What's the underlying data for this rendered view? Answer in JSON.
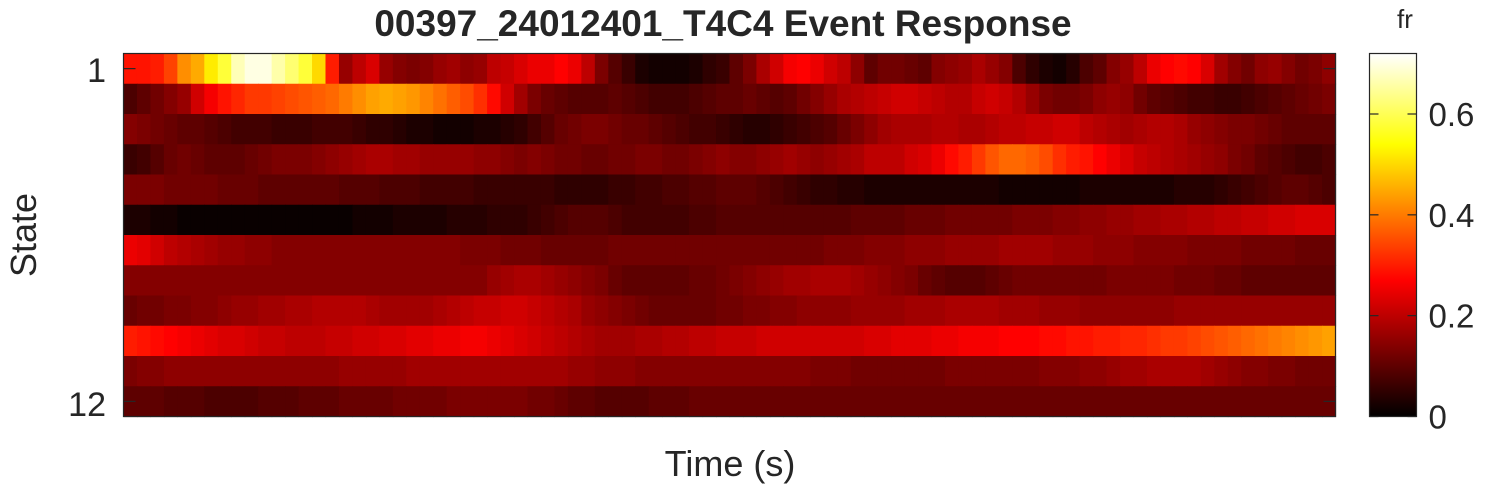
{
  "chart_data": {
    "type": "heatmap",
    "title": "00397_24012401_T4C4 Event Response",
    "xlabel": "Time (s)",
    "ylabel": "State",
    "y_tick_labels": [
      "1",
      "12"
    ],
    "rows": 12,
    "colorbar": {
      "label": "fr",
      "colormap": "hot",
      "range": [
        0,
        0.72
      ],
      "ticks": [
        0,
        0.2,
        0.4,
        0.6
      ],
      "tick_labels": [
        "0",
        "0.2",
        "0.4",
        "0.6"
      ]
    },
    "values": [
      [
        0.29,
        0.29,
        0.3,
        0.34,
        0.42,
        0.45,
        0.52,
        0.58,
        0.67,
        0.7,
        0.7,
        0.66,
        0.62,
        0.58,
        0.5,
        0.3,
        0.16,
        0.2,
        0.23,
        0.16,
        0.14,
        0.13,
        0.14,
        0.16,
        0.17,
        0.15,
        0.16,
        0.2,
        0.21,
        0.23,
        0.25,
        0.25,
        0.27,
        0.25,
        0.2,
        0.13,
        0.09,
        0.06,
        0.03,
        0.02,
        0.02,
        0.02,
        0.03,
        0.05,
        0.06,
        0.1,
        0.13,
        0.18,
        0.22,
        0.26,
        0.27,
        0.25,
        0.22,
        0.2,
        0.15,
        0.1,
        0.12,
        0.12,
        0.11,
        0.1,
        0.14,
        0.15,
        0.16,
        0.18,
        0.16,
        0.14,
        0.08,
        0.05,
        0.03,
        0.02,
        0.04,
        0.08,
        0.1,
        0.14,
        0.16,
        0.2,
        0.25,
        0.27,
        0.28,
        0.27,
        0.23,
        0.17,
        0.14,
        0.12,
        0.15,
        0.16,
        0.14,
        0.12,
        0.13,
        0.15
      ],
      [
        0.08,
        0.1,
        0.12,
        0.14,
        0.16,
        0.22,
        0.26,
        0.29,
        0.31,
        0.33,
        0.33,
        0.34,
        0.35,
        0.36,
        0.37,
        0.38,
        0.4,
        0.42,
        0.44,
        0.45,
        0.44,
        0.43,
        0.41,
        0.39,
        0.37,
        0.35,
        0.32,
        0.28,
        0.22,
        0.17,
        0.13,
        0.11,
        0.1,
        0.09,
        0.09,
        0.09,
        0.1,
        0.09,
        0.08,
        0.07,
        0.07,
        0.07,
        0.08,
        0.09,
        0.1,
        0.1,
        0.11,
        0.1,
        0.09,
        0.1,
        0.12,
        0.14,
        0.16,
        0.18,
        0.19,
        0.2,
        0.21,
        0.22,
        0.22,
        0.21,
        0.2,
        0.19,
        0.19,
        0.21,
        0.22,
        0.21,
        0.19,
        0.16,
        0.13,
        0.12,
        0.12,
        0.13,
        0.15,
        0.16,
        0.15,
        0.12,
        0.1,
        0.09,
        0.08,
        0.07,
        0.07,
        0.06,
        0.06,
        0.07,
        0.08,
        0.09,
        0.1,
        0.11,
        0.12,
        0.13
      ],
      [
        0.14,
        0.13,
        0.12,
        0.11,
        0.1,
        0.1,
        0.09,
        0.08,
        0.07,
        0.07,
        0.07,
        0.06,
        0.06,
        0.06,
        0.07,
        0.07,
        0.07,
        0.06,
        0.05,
        0.05,
        0.04,
        0.03,
        0.03,
        0.02,
        0.02,
        0.02,
        0.03,
        0.03,
        0.04,
        0.05,
        0.07,
        0.09,
        0.11,
        0.12,
        0.13,
        0.13,
        0.12,
        0.11,
        0.11,
        0.1,
        0.09,
        0.08,
        0.07,
        0.07,
        0.06,
        0.05,
        0.04,
        0.04,
        0.05,
        0.06,
        0.07,
        0.08,
        0.09,
        0.11,
        0.13,
        0.15,
        0.17,
        0.18,
        0.18,
        0.18,
        0.19,
        0.19,
        0.18,
        0.18,
        0.19,
        0.2,
        0.2,
        0.21,
        0.21,
        0.22,
        0.22,
        0.2,
        0.19,
        0.18,
        0.17,
        0.18,
        0.19,
        0.19,
        0.18,
        0.16,
        0.15,
        0.14,
        0.13,
        0.13,
        0.12,
        0.11,
        0.1,
        0.1,
        0.1,
        0.1
      ],
      [
        0.06,
        0.07,
        0.09,
        0.11,
        0.12,
        0.11,
        0.1,
        0.1,
        0.1,
        0.11,
        0.12,
        0.13,
        0.13,
        0.13,
        0.14,
        0.15,
        0.16,
        0.17,
        0.18,
        0.18,
        0.17,
        0.17,
        0.16,
        0.16,
        0.16,
        0.16,
        0.15,
        0.15,
        0.14,
        0.13,
        0.14,
        0.13,
        0.12,
        0.12,
        0.11,
        0.11,
        0.12,
        0.12,
        0.13,
        0.13,
        0.12,
        0.12,
        0.13,
        0.14,
        0.15,
        0.14,
        0.14,
        0.15,
        0.16,
        0.17,
        0.16,
        0.15,
        0.16,
        0.17,
        0.18,
        0.2,
        0.2,
        0.2,
        0.22,
        0.23,
        0.25,
        0.28,
        0.3,
        0.33,
        0.36,
        0.38,
        0.38,
        0.37,
        0.35,
        0.32,
        0.3,
        0.29,
        0.27,
        0.25,
        0.23,
        0.21,
        0.2,
        0.19,
        0.18,
        0.17,
        0.16,
        0.15,
        0.13,
        0.12,
        0.1,
        0.09,
        0.08,
        0.07,
        0.07,
        0.08
      ],
      [
        0.13,
        0.13,
        0.13,
        0.12,
        0.12,
        0.12,
        0.12,
        0.11,
        0.11,
        0.11,
        0.1,
        0.1,
        0.1,
        0.1,
        0.1,
        0.1,
        0.09,
        0.09,
        0.09,
        0.08,
        0.08,
        0.08,
        0.07,
        0.07,
        0.07,
        0.07,
        0.06,
        0.06,
        0.06,
        0.06,
        0.06,
        0.06,
        0.05,
        0.05,
        0.05,
        0.05,
        0.06,
        0.06,
        0.07,
        0.07,
        0.08,
        0.08,
        0.09,
        0.09,
        0.1,
        0.1,
        0.1,
        0.09,
        0.08,
        0.07,
        0.06,
        0.05,
        0.05,
        0.04,
        0.04,
        0.03,
        0.03,
        0.03,
        0.03,
        0.03,
        0.03,
        0.03,
        0.03,
        0.03,
        0.03,
        0.02,
        0.02,
        0.02,
        0.02,
        0.02,
        0.02,
        0.03,
        0.03,
        0.03,
        0.03,
        0.03,
        0.03,
        0.03,
        0.04,
        0.04,
        0.04,
        0.05,
        0.06,
        0.07,
        0.08,
        0.09,
        0.1,
        0.1,
        0.09,
        0.08
      ],
      [
        0.03,
        0.03,
        0.02,
        0.02,
        0.01,
        0.01,
        0.01,
        0.01,
        0.01,
        0.01,
        0.01,
        0.01,
        0.01,
        0.01,
        0.01,
        0.01,
        0.01,
        0.02,
        0.02,
        0.02,
        0.03,
        0.03,
        0.03,
        0.03,
        0.04,
        0.04,
        0.04,
        0.05,
        0.05,
        0.05,
        0.06,
        0.07,
        0.08,
        0.09,
        0.09,
        0.09,
        0.08,
        0.07,
        0.07,
        0.07,
        0.07,
        0.07,
        0.08,
        0.08,
        0.09,
        0.09,
        0.09,
        0.09,
        0.09,
        0.09,
        0.09,
        0.09,
        0.09,
        0.09,
        0.1,
        0.1,
        0.1,
        0.1,
        0.11,
        0.11,
        0.11,
        0.12,
        0.12,
        0.12,
        0.12,
        0.12,
        0.13,
        0.13,
        0.13,
        0.14,
        0.14,
        0.15,
        0.15,
        0.16,
        0.16,
        0.17,
        0.17,
        0.18,
        0.18,
        0.19,
        0.19,
        0.2,
        0.2,
        0.21,
        0.21,
        0.22,
        0.22,
        0.23,
        0.23,
        0.23
      ],
      [
        0.25,
        0.24,
        0.22,
        0.2,
        0.19,
        0.18,
        0.17,
        0.16,
        0.16,
        0.15,
        0.15,
        0.14,
        0.14,
        0.14,
        0.14,
        0.14,
        0.14,
        0.14,
        0.14,
        0.14,
        0.14,
        0.14,
        0.14,
        0.14,
        0.14,
        0.13,
        0.13,
        0.13,
        0.12,
        0.12,
        0.12,
        0.11,
        0.11,
        0.11,
        0.11,
        0.11,
        0.12,
        0.12,
        0.12,
        0.12,
        0.12,
        0.12,
        0.12,
        0.12,
        0.12,
        0.12,
        0.12,
        0.12,
        0.12,
        0.12,
        0.12,
        0.12,
        0.13,
        0.13,
        0.13,
        0.14,
        0.14,
        0.14,
        0.15,
        0.15,
        0.15,
        0.16,
        0.16,
        0.16,
        0.16,
        0.17,
        0.17,
        0.17,
        0.17,
        0.16,
        0.16,
        0.16,
        0.15,
        0.15,
        0.15,
        0.14,
        0.14,
        0.14,
        0.14,
        0.13,
        0.13,
        0.13,
        0.13,
        0.12,
        0.12,
        0.12,
        0.12,
        0.11,
        0.11,
        0.11
      ],
      [
        0.14,
        0.14,
        0.14,
        0.14,
        0.14,
        0.14,
        0.14,
        0.14,
        0.14,
        0.14,
        0.14,
        0.14,
        0.14,
        0.14,
        0.14,
        0.14,
        0.14,
        0.14,
        0.14,
        0.14,
        0.14,
        0.14,
        0.14,
        0.14,
        0.14,
        0.14,
        0.14,
        0.16,
        0.17,
        0.18,
        0.18,
        0.17,
        0.16,
        0.15,
        0.14,
        0.13,
        0.11,
        0.1,
        0.1,
        0.1,
        0.1,
        0.1,
        0.11,
        0.11,
        0.12,
        0.13,
        0.14,
        0.15,
        0.16,
        0.17,
        0.17,
        0.18,
        0.18,
        0.18,
        0.17,
        0.16,
        0.15,
        0.14,
        0.13,
        0.11,
        0.1,
        0.09,
        0.09,
        0.09,
        0.1,
        0.11,
        0.12,
        0.12,
        0.12,
        0.12,
        0.12,
        0.12,
        0.12,
        0.13,
        0.13,
        0.13,
        0.13,
        0.13,
        0.12,
        0.12,
        0.12,
        0.11,
        0.11,
        0.1,
        0.1,
        0.1,
        0.1,
        0.1,
        0.1,
        0.1
      ],
      [
        0.11,
        0.12,
        0.12,
        0.13,
        0.13,
        0.14,
        0.14,
        0.15,
        0.16,
        0.16,
        0.17,
        0.17,
        0.18,
        0.18,
        0.19,
        0.19,
        0.19,
        0.19,
        0.18,
        0.17,
        0.17,
        0.17,
        0.17,
        0.18,
        0.19,
        0.2,
        0.21,
        0.21,
        0.22,
        0.22,
        0.21,
        0.2,
        0.19,
        0.18,
        0.16,
        0.15,
        0.14,
        0.13,
        0.12,
        0.11,
        0.11,
        0.11,
        0.11,
        0.11,
        0.12,
        0.12,
        0.13,
        0.13,
        0.14,
        0.14,
        0.15,
        0.15,
        0.15,
        0.15,
        0.16,
        0.16,
        0.16,
        0.16,
        0.17,
        0.17,
        0.17,
        0.18,
        0.18,
        0.18,
        0.18,
        0.17,
        0.17,
        0.17,
        0.16,
        0.16,
        0.16,
        0.15,
        0.15,
        0.15,
        0.15,
        0.15,
        0.15,
        0.15,
        0.16,
        0.16,
        0.16,
        0.16,
        0.16,
        0.16,
        0.16,
        0.16,
        0.16,
        0.16,
        0.16,
        0.16
      ],
      [
        0.3,
        0.29,
        0.28,
        0.27,
        0.26,
        0.25,
        0.24,
        0.23,
        0.23,
        0.22,
        0.21,
        0.21,
        0.2,
        0.2,
        0.2,
        0.21,
        0.21,
        0.22,
        0.22,
        0.23,
        0.23,
        0.24,
        0.24,
        0.25,
        0.25,
        0.26,
        0.26,
        0.25,
        0.24,
        0.23,
        0.22,
        0.21,
        0.2,
        0.19,
        0.18,
        0.17,
        0.17,
        0.17,
        0.18,
        0.18,
        0.19,
        0.19,
        0.2,
        0.2,
        0.21,
        0.21,
        0.21,
        0.22,
        0.22,
        0.22,
        0.22,
        0.22,
        0.22,
        0.22,
        0.22,
        0.23,
        0.23,
        0.24,
        0.24,
        0.24,
        0.25,
        0.25,
        0.26,
        0.26,
        0.26,
        0.27,
        0.27,
        0.27,
        0.28,
        0.28,
        0.29,
        0.29,
        0.3,
        0.3,
        0.31,
        0.31,
        0.32,
        0.33,
        0.33,
        0.34,
        0.35,
        0.36,
        0.37,
        0.38,
        0.39,
        0.4,
        0.41,
        0.42,
        0.43,
        0.44
      ],
      [
        0.13,
        0.14,
        0.14,
        0.15,
        0.15,
        0.15,
        0.15,
        0.15,
        0.15,
        0.15,
        0.15,
        0.15,
        0.15,
        0.15,
        0.15,
        0.15,
        0.16,
        0.16,
        0.16,
        0.16,
        0.16,
        0.17,
        0.17,
        0.17,
        0.17,
        0.17,
        0.17,
        0.17,
        0.17,
        0.17,
        0.17,
        0.17,
        0.17,
        0.16,
        0.16,
        0.15,
        0.15,
        0.15,
        0.14,
        0.14,
        0.14,
        0.14,
        0.14,
        0.14,
        0.14,
        0.14,
        0.14,
        0.14,
        0.14,
        0.14,
        0.14,
        0.13,
        0.13,
        0.13,
        0.12,
        0.12,
        0.12,
        0.12,
        0.12,
        0.12,
        0.12,
        0.13,
        0.13,
        0.13,
        0.13,
        0.13,
        0.13,
        0.13,
        0.14,
        0.14,
        0.14,
        0.15,
        0.15,
        0.16,
        0.17,
        0.17,
        0.18,
        0.18,
        0.18,
        0.18,
        0.17,
        0.16,
        0.15,
        0.14,
        0.14,
        0.13,
        0.13,
        0.12,
        0.12,
        0.12
      ],
      [
        0.1,
        0.1,
        0.1,
        0.09,
        0.09,
        0.09,
        0.08,
        0.08,
        0.08,
        0.08,
        0.09,
        0.09,
        0.09,
        0.1,
        0.1,
        0.1,
        0.11,
        0.11,
        0.11,
        0.11,
        0.12,
        0.12,
        0.12,
        0.12,
        0.13,
        0.13,
        0.13,
        0.13,
        0.13,
        0.13,
        0.12,
        0.12,
        0.11,
        0.1,
        0.1,
        0.09,
        0.09,
        0.09,
        0.09,
        0.1,
        0.1,
        0.1,
        0.11,
        0.11,
        0.11,
        0.11,
        0.11,
        0.11,
        0.11,
        0.11,
        0.11,
        0.11,
        0.11,
        0.11,
        0.11,
        0.11,
        0.11,
        0.11,
        0.11,
        0.11,
        0.11,
        0.11,
        0.11,
        0.11,
        0.11,
        0.11,
        0.11,
        0.11,
        0.11,
        0.11,
        0.11,
        0.11,
        0.11,
        0.11,
        0.11,
        0.11,
        0.11,
        0.11,
        0.11,
        0.11,
        0.11,
        0.11,
        0.11,
        0.11,
        0.11,
        0.11,
        0.11,
        0.11,
        0.11,
        0.11
      ]
    ]
  }
}
